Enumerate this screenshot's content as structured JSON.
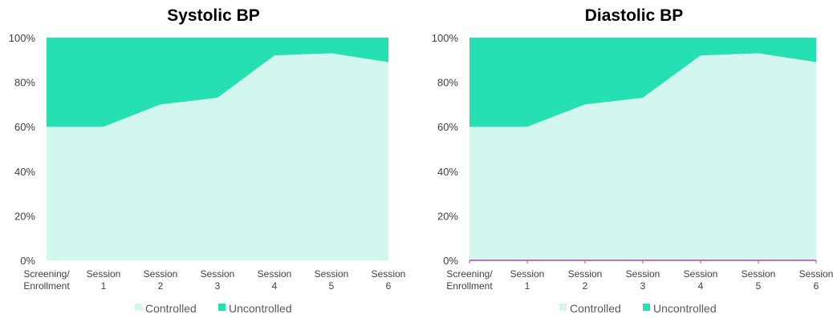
{
  "chart_data": [
    {
      "type": "area",
      "stacked": "percent",
      "title": "Systolic BP",
      "categories": [
        [
          "Screening/",
          "Enrollment"
        ],
        [
          "Session",
          "1"
        ],
        [
          "Session",
          "2"
        ],
        [
          "Session",
          "3"
        ],
        [
          "Session",
          "4"
        ],
        [
          "Session",
          "5"
        ],
        [
          "Session",
          "6"
        ]
      ],
      "series": [
        {
          "name": "Controlled",
          "values": [
            60,
            60,
            70,
            73,
            92,
            93,
            89
          ],
          "color": "#d3f7ee"
        },
        {
          "name": "Uncontrolled",
          "values": [
            40,
            40,
            30,
            27,
            8,
            7,
            11
          ],
          "color": "#26e0b3"
        }
      ],
      "ylim": [
        0,
        100
      ],
      "yticks": [
        "0%",
        "20%",
        "40%",
        "60%",
        "80%",
        "100%"
      ],
      "grid": false,
      "legend": "bottom"
    },
    {
      "type": "area",
      "stacked": "percent",
      "title": "Diastolic BP",
      "categories": [
        [
          "Screening/",
          "Enrollment"
        ],
        [
          "Session",
          "1"
        ],
        [
          "Session",
          "2"
        ],
        [
          "Session",
          "3"
        ],
        [
          "Session",
          "4"
        ],
        [
          "Session",
          "5"
        ],
        [
          "Session",
          "6"
        ]
      ],
      "series": [
        {
          "name": "Controlled",
          "values": [
            60,
            60,
            70,
            73,
            92,
            93,
            89
          ],
          "color": "#d3f7ee"
        },
        {
          "name": "Uncontrolled",
          "values": [
            40,
            40,
            30,
            27,
            8,
            7,
            11
          ],
          "color": "#26e0b3"
        }
      ],
      "ylim": [
        0,
        100
      ],
      "yticks": [
        "0%",
        "20%",
        "40%",
        "60%",
        "80%",
        "100%"
      ],
      "grid": false,
      "legend": "bottom",
      "axis_color": "#b04aa0"
    }
  ]
}
